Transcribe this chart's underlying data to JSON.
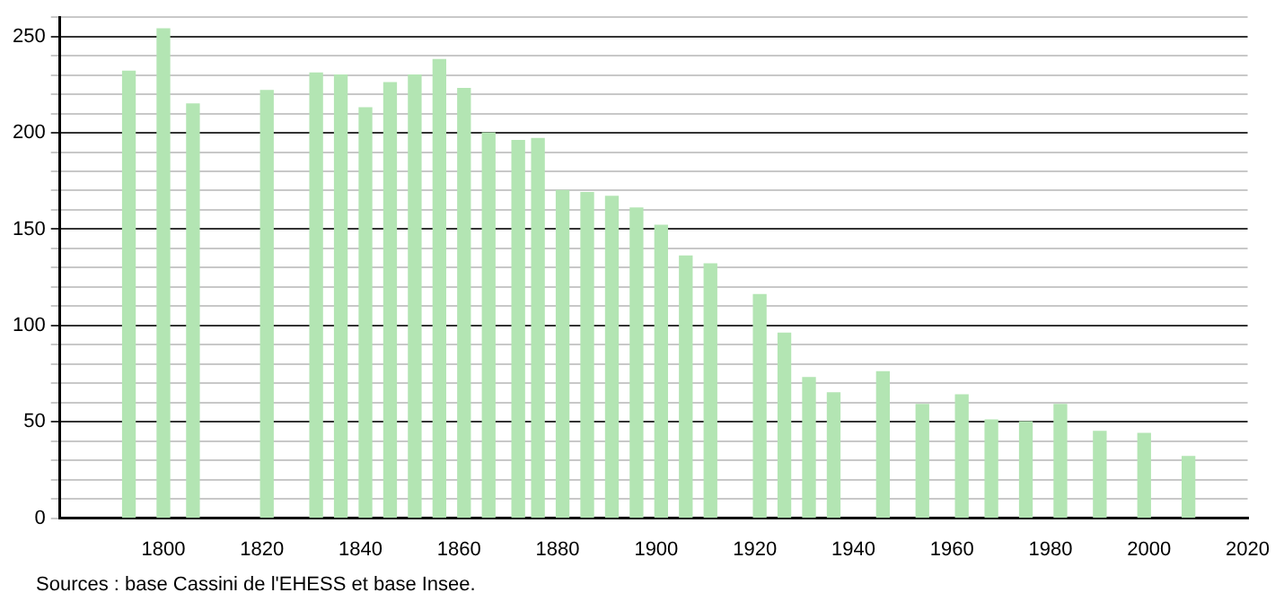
{
  "chart_data": {
    "type": "bar",
    "x": [
      1793,
      1800,
      1806,
      1821,
      1831,
      1836,
      1841,
      1846,
      1851,
      1856,
      1861,
      1866,
      1872,
      1876,
      1881,
      1886,
      1891,
      1896,
      1901,
      1906,
      1911,
      1921,
      1926,
      1931,
      1936,
      1946,
      1954,
      1962,
      1968,
      1975,
      1982,
      1990,
      1999,
      2008
    ],
    "values": [
      232,
      254,
      215,
      222,
      231,
      230,
      213,
      226,
      230,
      238,
      223,
      200,
      196,
      197,
      170,
      169,
      167,
      161,
      152,
      136,
      132,
      116,
      96,
      73,
      65,
      76,
      59,
      64,
      51,
      50,
      59,
      45,
      44,
      32
    ],
    "color": "#b3e5b3",
    "xlim": [
      1779,
      2020
    ],
    "xticks": [
      1800,
      1820,
      1840,
      1860,
      1880,
      1900,
      1920,
      1940,
      1960,
      1980,
      2000,
      2020
    ],
    "ylim": [
      0,
      260
    ],
    "yticks": [
      0,
      {
        "value": 10,
        "label": null
      },
      {
        "value": 20,
        "label": null
      },
      {
        "value": 30,
        "label": null
      },
      {
        "value": 40,
        "label": null
      },
      50,
      {
        "value": 60,
        "label": null
      },
      {
        "value": 70,
        "label": null
      },
      {
        "value": 80,
        "label": null
      },
      {
        "value": 90,
        "label": null
      },
      100,
      {
        "value": 110,
        "label": null
      },
      {
        "value": 120,
        "label": null
      },
      {
        "value": 130,
        "label": null
      },
      {
        "value": 140,
        "label": null
      },
      150,
      {
        "value": 160,
        "label": null
      },
      {
        "value": 170,
        "label": null
      },
      {
        "value": 180,
        "label": null
      },
      {
        "value": 190,
        "label": null
      },
      200,
      {
        "value": 210,
        "label": null
      },
      {
        "value": 220,
        "label": null
      },
      {
        "value": 230,
        "label": null
      },
      {
        "value": 240,
        "label": null
      },
      250,
      {
        "value": 260,
        "label": null
      }
    ],
    "grid": "y",
    "annotations": [
      "Sources : base Cassini de l'EHESS et base Insee."
    ]
  }
}
